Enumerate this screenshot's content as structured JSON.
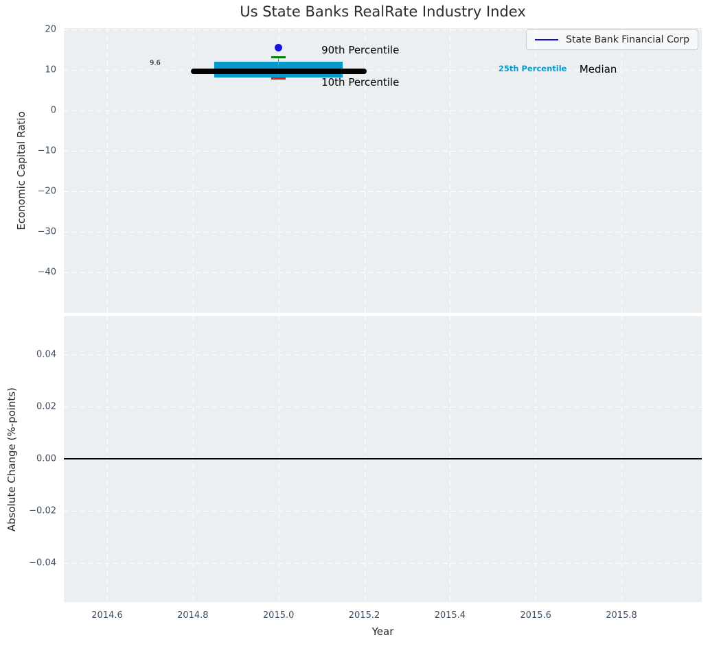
{
  "title": "Us State Banks RealRate Industry Index",
  "legend": {
    "label": "State Bank Financial Corp",
    "line_color": "#0b0be1"
  },
  "colors": {
    "figure_bg": "#ffffff",
    "axes_bg": "#eceff1",
    "grid": "#ffffff",
    "tick_text": "#3b4e61",
    "title_text": "#2b2b30",
    "iqr_band": "#0899cc",
    "median_line": "#000000",
    "p90_tick": "#008000",
    "p10_tick": "#ee1111",
    "whisker": "#808080",
    "company_dot": "#1414e0",
    "zero_line": "#000000",
    "annotation_cyan": "#0a9bce",
    "annotation_black": "#000000"
  },
  "chart_data": [
    {
      "type": "box",
      "subplot": "top",
      "title": "Us State Banks RealRate Industry Index",
      "ylabel": "Economic Capital Ratio",
      "xlabel": "",
      "grid": "white dashed on",
      "legend_entries": [
        "State Bank Financial Corp"
      ],
      "legend_position": "upper right",
      "xlim": [
        2014.5,
        2015.99
      ],
      "ylim": [
        -50.5,
        20.3
      ],
      "yticks": [
        20,
        10,
        0,
        -10,
        -20,
        -30,
        -40
      ],
      "ytick_labels": [
        "20",
        "10",
        "0",
        "−10",
        "−20",
        "−30",
        "−40"
      ],
      "xticks": [
        2014.6,
        2014.8,
        2015.0,
        2015.2,
        2015.4,
        2015.6,
        2015.8
      ],
      "series": {
        "year": 2015,
        "company_value": 15.4,
        "p90": 13.0,
        "p75": 11.9,
        "median": 9.6,
        "p25": 8.0,
        "p10": 7.8,
        "median_line_extent_years": [
          2014.795,
          2015.205
        ],
        "iqr_band_extent_years": [
          2014.85,
          2015.15
        ],
        "percentile_tick_halfwidth_years": 0.0165
      },
      "annotations": [
        {
          "id": "median-value",
          "text": "9.6",
          "x": 2014.712,
          "y": 11.6,
          "color": "#000000",
          "size": 10,
          "weight": "normal",
          "anchor": "center"
        },
        {
          "id": "90th-percentile",
          "text": "90th Percentile",
          "x": 2015.1,
          "y": 14.83,
          "color": "#000000",
          "size": 15,
          "weight": "normal",
          "anchor": "left"
        },
        {
          "id": "10th-percentile",
          "text": "10th Percentile",
          "x": 2015.1,
          "y": 6.86,
          "color": "#000000",
          "size": 15,
          "weight": "normal",
          "anchor": "left"
        },
        {
          "id": "25th-percentile",
          "text": "25th Percentile",
          "x": 2015.513,
          "y": 10.25,
          "color": "#0a9bce",
          "size": 11.5,
          "weight": "bold",
          "anchor": "left"
        },
        {
          "id": "median-label",
          "text": "Median",
          "x": 2015.702,
          "y": 10.08,
          "color": "#000000",
          "size": 15,
          "weight": "normal",
          "anchor": "left"
        }
      ]
    },
    {
      "type": "line",
      "subplot": "bottom",
      "ylabel": "Absolute Change (%-points)",
      "xlabel": "Year",
      "grid": "white dashed on",
      "xlim": [
        2014.5,
        2015.99
      ],
      "ylim": [
        -0.055,
        0.0546
      ],
      "yticks": [
        0.04,
        0.02,
        0.0,
        -0.02,
        -0.04
      ],
      "ytick_labels": [
        "0.04",
        "0.02",
        "0.00",
        "−0.02",
        "−0.04"
      ],
      "xticks": [
        2014.6,
        2014.8,
        2015.0,
        2015.2,
        2015.4,
        2015.6,
        2015.8
      ],
      "xtick_labels": [
        "2014.6",
        "2014.8",
        "2015.0",
        "2015.2",
        "2015.4",
        "2015.6",
        "2015.8"
      ],
      "zero_line_y": 0.0
    }
  ]
}
